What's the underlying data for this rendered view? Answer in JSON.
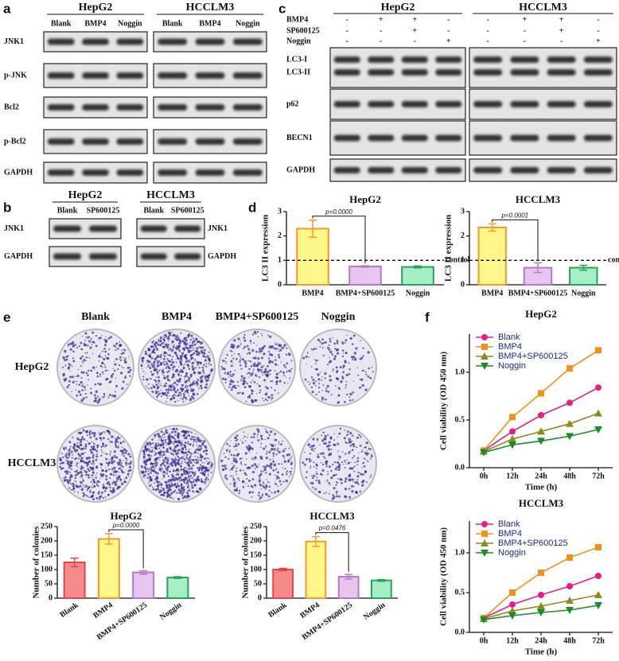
{
  "panels": [
    "a",
    "b",
    "c",
    "d",
    "e",
    "f"
  ],
  "blots": [
    {
      "groups": [
        {
          "name": "HepG2",
          "lanes": [
            "Blank",
            "BMP4",
            "Noggin"
          ]
        },
        {
          "name": "HCCLM3",
          "lanes": [
            "Blank",
            "BMP4",
            "Noggin"
          ]
        }
      ],
      "rows": [
        {
          "labels": [
            "JNK1"
          ]
        },
        {
          "labels": [
            "p-JNK"
          ]
        },
        {
          "labels": [
            "Bcl2"
          ]
        },
        {
          "labels": [
            "p-Bcl2"
          ]
        },
        {
          "labels": [
            "GAPDH"
          ]
        }
      ]
    },
    {
      "groups": [
        {
          "name": "HepG2",
          "lanes": [
            "Blank",
            "SP600125"
          ]
        },
        {
          "name": "HCCLM3",
          "lanes": [
            "Blank",
            "SP600125"
          ]
        }
      ],
      "rows": [
        {
          "labels": [
            "JNK1"
          ]
        },
        {
          "labels": [
            "GAPDH"
          ]
        }
      ]
    },
    {
      "groups": [
        {
          "name": "HepG2"
        },
        {
          "name": "HCCLM3"
        }
      ],
      "treatments": [
        {
          "name": "BMP4",
          "signs": [
            [
              "-",
              "+",
              "+",
              "-"
            ],
            [
              "-",
              "+",
              "+",
              "-"
            ]
          ]
        },
        {
          "name": "SP600125",
          "signs": [
            [
              "-",
              "-",
              "+",
              "-"
            ],
            [
              "-",
              "-",
              "+",
              "-"
            ]
          ]
        },
        {
          "name": "Noggin",
          "signs": [
            [
              "-",
              "-",
              "-",
              "+"
            ],
            [
              "-",
              "-",
              "-",
              "+"
            ]
          ]
        }
      ],
      "rows": [
        {
          "labels": [
            "LC3-I",
            "LC3-II"
          ]
        },
        {
          "labels": [
            "p62"
          ]
        },
        {
          "labels": [
            "BECN1"
          ]
        },
        {
          "labels": [
            "GAPDH"
          ]
        }
      ]
    }
  ],
  "plates": {
    "columns": [
      "Blank",
      "BMP4",
      "BMP4+SP600125",
      "Noggin"
    ],
    "rows": [
      "HepG2",
      "HCCLM3"
    ]
  },
  "chart_data": [
    {
      "type": "bar",
      "title": "HepG2",
      "ylabel": "LC3 II expression",
      "categories": [
        "BMP4",
        "BMP4+SP600125",
        "Noggin"
      ],
      "values": [
        2.3,
        0.75,
        0.73
      ],
      "errors": [
        0.35,
        0.03,
        0.04
      ],
      "colors": [
        "#fff78a",
        "#e6c6ee",
        "#a6efc6"
      ],
      "edge_colors": [
        "#f29a2e",
        "#b878c8",
        "#2ea05a"
      ],
      "ylim": [
        0,
        3
      ],
      "yticks": [
        0,
        1,
        2,
        3
      ],
      "annotation": "p=0.0000",
      "reference_line": {
        "value": 1,
        "label": "control"
      }
    },
    {
      "type": "bar",
      "title": "HCCLM3",
      "ylabel": "LC3 II expression",
      "categories": [
        "BMP4",
        "BMP4+SP600125",
        "Noggin"
      ],
      "values": [
        2.35,
        0.7,
        0.7
      ],
      "errors": [
        0.15,
        0.2,
        0.1
      ],
      "colors": [
        "#fff78a",
        "#e6c6ee",
        "#a6efc6"
      ],
      "edge_colors": [
        "#f29a2e",
        "#b878c8",
        "#2ea05a"
      ],
      "ylim": [
        0,
        3
      ],
      "yticks": [
        0,
        1,
        2,
        3
      ],
      "annotation": "p=0.0001",
      "reference_line": {
        "value": 1,
        "label": "control"
      }
    },
    {
      "type": "bar",
      "title": "HepG2",
      "ylabel": "Number of colonies",
      "categories": [
        "Blank",
        "BMP4",
        "BMP4+SP600125",
        "Noggin"
      ],
      "values": [
        125,
        207,
        90,
        72
      ],
      "errors": [
        15,
        18,
        6,
        3
      ],
      "colors": [
        "#f58a8a",
        "#fff78a",
        "#e6c6ee",
        "#a6efc6"
      ],
      "edge_colors": [
        "#e04848",
        "#f29a2e",
        "#b878c8",
        "#2ea05a"
      ],
      "ylim": [
        0,
        250
      ],
      "yticks": [
        0,
        50,
        100,
        150,
        200,
        250
      ],
      "annotation": "p=0.0000",
      "rotated_labels": true
    },
    {
      "type": "bar",
      "title": "HCCLM3",
      "ylabel": "Number of colonies",
      "categories": [
        "Blank",
        "BMP4",
        "BMP4+SP600125",
        "Noggin"
      ],
      "values": [
        100,
        198,
        75,
        62
      ],
      "errors": [
        4,
        17,
        8,
        3
      ],
      "colors": [
        "#f58a8a",
        "#fff78a",
        "#e6c6ee",
        "#a6efc6"
      ],
      "edge_colors": [
        "#e04848",
        "#f29a2e",
        "#b878c8",
        "#2ea05a"
      ],
      "ylim": [
        0,
        250
      ],
      "yticks": [
        0,
        50,
        100,
        150,
        200,
        250
      ],
      "annotation": "p=0.0476",
      "rotated_labels": true
    },
    {
      "type": "line",
      "title": "HepG2",
      "xlabel": "Time (h)",
      "ylabel": "Cell viability (OD 450 nm)",
      "categories": [
        "0h",
        "12h",
        "24h",
        "48h",
        "72h"
      ],
      "series": [
        {
          "name": "Blank",
          "color": "#e0208a",
          "marker": "circle",
          "values": [
            0.18,
            0.38,
            0.55,
            0.68,
            0.84
          ]
        },
        {
          "name": "BMP4",
          "color": "#f0901e",
          "marker": "square",
          "values": [
            0.18,
            0.53,
            0.78,
            1.04,
            1.23
          ]
        },
        {
          "name": "BMP4+SP600125",
          "color": "#8a8a1e",
          "marker": "triangle-up",
          "values": [
            0.17,
            0.3,
            0.38,
            0.46,
            0.57
          ]
        },
        {
          "name": "Noggin",
          "color": "#1e8a30",
          "marker": "triangle-down",
          "values": [
            0.16,
            0.24,
            0.28,
            0.33,
            0.4
          ]
        }
      ],
      "ylim": [
        0,
        1.4
      ],
      "yticks": [
        {
          "value": 0,
          "label": "0.0"
        },
        0.5,
        {
          "value": 1,
          "label": "1.0"
        }
      ]
    },
    {
      "type": "line",
      "title": "HCCLM3",
      "xlabel": "Time (h)",
      "ylabel": "Cell viability (OD 450 nm)",
      "categories": [
        "0h",
        "12h",
        "24h",
        "48h",
        "72h"
      ],
      "series": [
        {
          "name": "Blank",
          "color": "#e0208a",
          "marker": "circle",
          "values": [
            0.18,
            0.35,
            0.47,
            0.58,
            0.71
          ]
        },
        {
          "name": "BMP4",
          "color": "#f0901e",
          "marker": "square",
          "values": [
            0.18,
            0.5,
            0.75,
            0.94,
            1.07
          ]
        },
        {
          "name": "BMP4+SP600125",
          "color": "#8a8a1e",
          "marker": "triangle-up",
          "values": [
            0.17,
            0.27,
            0.33,
            0.4,
            0.47
          ]
        },
        {
          "name": "Noggin",
          "color": "#1e8a30",
          "marker": "triangle-down",
          "values": [
            0.16,
            0.21,
            0.25,
            0.28,
            0.34
          ]
        }
      ],
      "ylim": [
        0,
        1.4
      ],
      "yticks": [
        {
          "value": 0,
          "label": "0.0"
        },
        0.5,
        {
          "value": 1,
          "label": "1.0"
        }
      ]
    }
  ]
}
